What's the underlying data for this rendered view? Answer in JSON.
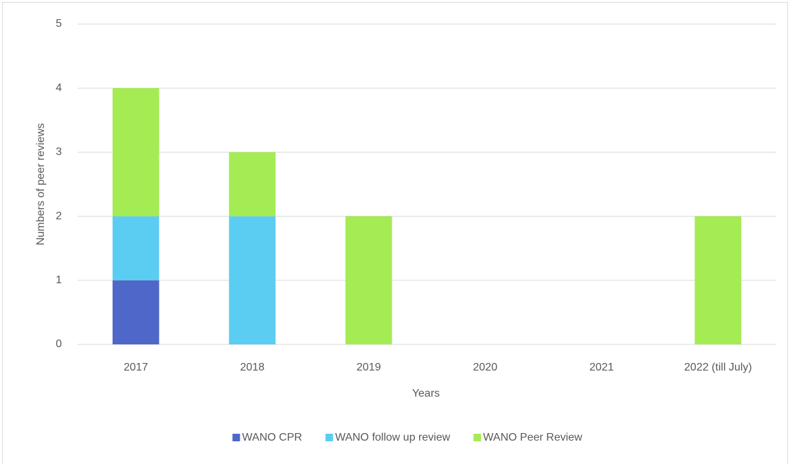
{
  "chart_data": {
    "type": "stacked_bar",
    "categories": [
      "2017",
      "2018",
      "2019",
      "2020",
      "2021",
      "2022 (till July)"
    ],
    "series": [
      {
        "name": "WANO CPR",
        "color": "#4f67c8",
        "values": [
          1,
          0,
          0,
          0,
          0,
          0
        ]
      },
      {
        "name": "WANO follow up review",
        "color": "#5ccdf2",
        "values": [
          1,
          2,
          0,
          0,
          0,
          0
        ]
      },
      {
        "name": "WANO Peer Review",
        "color": "#a5eb53",
        "values": [
          2,
          1,
          2,
          0,
          0,
          2
        ]
      }
    ],
    "x_label": "Years",
    "y_label": "Numbers of peer reviews",
    "ylim": [
      0,
      5
    ],
    "yticks": [
      0,
      1,
      2,
      3,
      4,
      5
    ],
    "grid": true,
    "legend": "bottom"
  }
}
